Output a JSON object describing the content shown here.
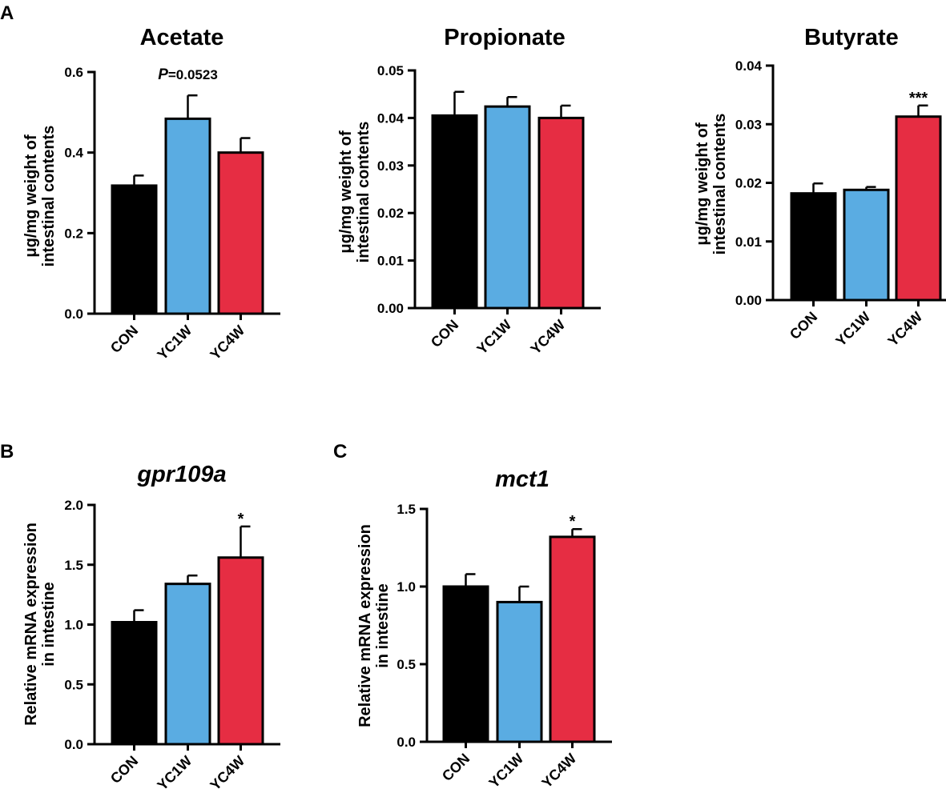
{
  "panel_labels": [
    "A",
    "B",
    "C"
  ],
  "colors": {
    "CON": "#000000",
    "YC1W": "#5aace2",
    "YC4W": "#e62d43"
  },
  "chart_data": [
    {
      "panel": "A",
      "type": "bar",
      "title": "Acetate",
      "title_italic": false,
      "ylabel": [
        "μg/mg weight of",
        "intestinal contents"
      ],
      "categories": [
        "CON",
        "YC1W",
        "YC4W"
      ],
      "values": [
        0.318,
        0.484,
        0.4
      ],
      "errors": [
        0.025,
        0.058,
        0.036
      ],
      "ylim": [
        0,
        0.6
      ],
      "yticks": [
        "0.0",
        "0.2",
        "0.4",
        "0.6"
      ],
      "annotation": {
        "bar": 1,
        "prefix": "P",
        "text": "=0.0523"
      }
    },
    {
      "panel": "A",
      "type": "bar",
      "title": "Propionate",
      "title_italic": false,
      "ylabel": [
        "μg/mg weight of",
        "intestinal contents"
      ],
      "categories": [
        "CON",
        "YC1W",
        "YC4W"
      ],
      "values": [
        0.0405,
        0.0424,
        0.04
      ],
      "errors": [
        0.005,
        0.002,
        0.0026
      ],
      "ylim": [
        0,
        0.05
      ],
      "yticks": [
        "0.00",
        "0.01",
        "0.02",
        "0.03",
        "0.04",
        "0.05"
      ],
      "annotation": null
    },
    {
      "panel": "A",
      "type": "bar",
      "title": "Butyrate",
      "title_italic": false,
      "ylabel": [
        "μg/mg weight of",
        "intestinal contents"
      ],
      "categories": [
        "CON",
        "YC1W",
        "YC4W"
      ],
      "values": [
        0.0182,
        0.0188,
        0.0313
      ],
      "errors": [
        0.0017,
        0.0005,
        0.0019
      ],
      "ylim": [
        0,
        0.04
      ],
      "yticks": [
        "0.00",
        "0.01",
        "0.02",
        "0.03",
        "0.04"
      ],
      "annotation": {
        "bar": 2,
        "text": "***"
      }
    },
    {
      "panel": "B",
      "type": "bar",
      "title": "gpr109a",
      "title_italic": true,
      "ylabel": [
        "Relative mRNA expression",
        "in intestine"
      ],
      "categories": [
        "CON",
        "YC1W",
        "YC4W"
      ],
      "values": [
        1.02,
        1.34,
        1.56
      ],
      "errors": [
        0.1,
        0.07,
        0.26
      ],
      "ylim": [
        0,
        2.0
      ],
      "yticks": [
        "0.0",
        "0.5",
        "1.0",
        "1.5",
        "2.0"
      ],
      "annotation": {
        "bar": 2,
        "text": "*"
      }
    },
    {
      "panel": "C",
      "type": "bar",
      "title": "mct1",
      "title_italic": true,
      "ylabel": [
        "Relative mRNA expression",
        "in intestine"
      ],
      "categories": [
        "CON",
        "YC1W",
        "YC4W"
      ],
      "values": [
        1.0,
        0.9,
        1.32
      ],
      "errors": [
        0.08,
        0.1,
        0.05
      ],
      "ylim": [
        0,
        1.5
      ],
      "yticks": [
        "0.0",
        "0.5",
        "1.0",
        "1.5"
      ],
      "annotation": {
        "bar": 2,
        "text": "*"
      }
    }
  ]
}
